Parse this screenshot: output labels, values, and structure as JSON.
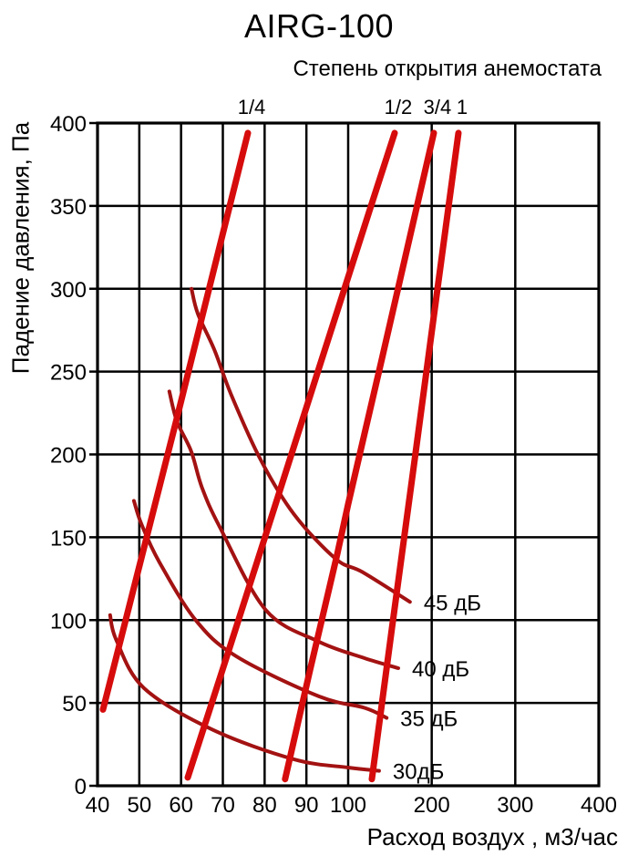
{
  "title": "AIRG-100",
  "subtitle": "Степень открытия анемостата",
  "chart_data": {
    "type": "line",
    "title": "AIRG-100",
    "subtitle": "Степень открытия анемостата",
    "xlabel": "Расход воздух , м3/час",
    "ylabel": "Падение давления, Па",
    "xlim": [
      40,
      400
    ],
    "ylim": [
      0,
      400
    ],
    "x_scale": "compressed-log-like (40-100 step 10, 100-400 step 100, equal tick spacing per step)",
    "grid": "on",
    "x_ticks": [
      40,
      50,
      60,
      70,
      80,
      90,
      100,
      200,
      300,
      400
    ],
    "x_tick_labels": [
      "40",
      "50",
      "60",
      "70",
      "80",
      "90",
      "100",
      "200",
      "300",
      "400"
    ],
    "y_ticks": [
      0,
      50,
      100,
      150,
      200,
      250,
      300,
      350,
      400
    ],
    "y_tick_labels": [
      "0",
      "50",
      "100",
      "150",
      "200",
      "250",
      "300",
      "350",
      "400"
    ],
    "colors": {
      "opening_line": "#d60c0c",
      "noise_curve": "#a31212",
      "grid": "#000000",
      "text": "#000000",
      "background": "#ffffff"
    },
    "opening_series": [
      {
        "label": "1/4",
        "name": "opening-1-4",
        "points": [
          [
            41.3,
            46
          ],
          [
            58.8,
            220
          ],
          [
            76,
            394
          ]
        ]
      },
      {
        "label": "1/2",
        "name": "opening-1-2",
        "points": [
          [
            61.6,
            5
          ],
          [
            71.2,
            80
          ],
          [
            82.1,
            166
          ],
          [
            93,
            252
          ],
          [
            100,
            307
          ],
          [
            130.5,
            355
          ],
          [
            155.6,
            394
          ]
        ]
      },
      {
        "label": "3/4",
        "name": "opening-3-4",
        "points": [
          [
            84.9,
            4
          ],
          [
            90.8,
            69
          ],
          [
            97.4,
            140
          ],
          [
            100,
            170
          ],
          [
            141.5,
            260
          ],
          [
            174.2,
            332
          ],
          [
            202.5,
            394
          ]
        ]
      },
      {
        "label": "1",
        "name": "opening-1",
        "points": [
          [
            128.4,
            4
          ],
          [
            152.4,
            95
          ],
          [
            179.6,
            197
          ],
          [
            206.9,
            300
          ],
          [
            232,
            394
          ]
        ]
      }
    ],
    "noise_series": [
      {
        "label": "30дБ",
        "name": "noise-30db",
        "points": [
          [
            43,
            103
          ],
          [
            44.5,
            88
          ],
          [
            51.1,
            59
          ],
          [
            67.4,
            34
          ],
          [
            87,
            16
          ],
          [
            100,
            11
          ],
          [
            137,
            9
          ]
        ]
      },
      {
        "label": "35 дБ",
        "name": "noise-35db",
        "points": [
          [
            48.7,
            172
          ],
          [
            50.5,
            158
          ],
          [
            54.8,
            135
          ],
          [
            63.5,
            100
          ],
          [
            73.3,
            78
          ],
          [
            93,
            54
          ],
          [
            120,
            47
          ],
          [
            146,
            41
          ]
        ]
      },
      {
        "label": "40 дБ",
        "name": "noise-40db",
        "points": [
          [
            57.2,
            238
          ],
          [
            59,
            220
          ],
          [
            62.4,
            202
          ],
          [
            65,
            180
          ],
          [
            69.3,
            156
          ],
          [
            80.3,
            106
          ],
          [
            93,
            87
          ],
          [
            120,
            77
          ],
          [
            160,
            71
          ]
        ]
      },
      {
        "label": "45 дБ",
        "name": "noise-45db",
        "points": [
          [
            62.5,
            300
          ],
          [
            64,
            285
          ],
          [
            68,
            263
          ],
          [
            72,
            236
          ],
          [
            79,
            197
          ],
          [
            87,
            164
          ],
          [
            97,
            137
          ],
          [
            117,
            129
          ],
          [
            174,
            111
          ]
        ]
      }
    ]
  }
}
